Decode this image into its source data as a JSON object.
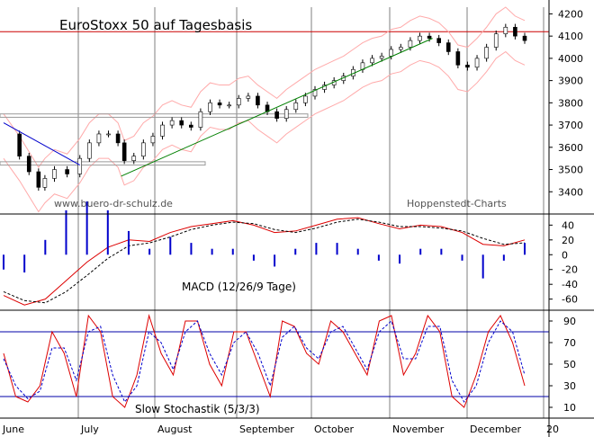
{
  "chart_data": [
    {
      "type": "candlestick",
      "title": "EuroStoxx 50 auf Tagesbasis",
      "watermark_left": "www.buero-dr-schulz.de",
      "watermark_right": "Hoppenstedt-Charts",
      "ylim": [
        3300,
        4230
      ],
      "yticks": [
        3400,
        3500,
        3600,
        3700,
        3800,
        3900,
        4000,
        4100,
        4200
      ],
      "horizontal_line": 4120,
      "months": [
        "June",
        "July",
        "August",
        "September",
        "October",
        "November",
        "December",
        "20"
      ],
      "close_path": [
        [
          0,
          3660
        ],
        [
          5,
          3560
        ],
        [
          8,
          3490
        ],
        [
          11,
          3420
        ],
        [
          13,
          3460
        ],
        [
          16,
          3500
        ],
        [
          20,
          3480
        ],
        [
          24,
          3550
        ],
        [
          27,
          3620
        ],
        [
          30,
          3660
        ],
        [
          33,
          3660
        ],
        [
          36,
          3620
        ],
        [
          38,
          3540
        ],
        [
          41,
          3560
        ],
        [
          44,
          3620
        ],
        [
          47,
          3650
        ],
        [
          50,
          3700
        ],
        [
          53,
          3720
        ],
        [
          56,
          3700
        ],
        [
          59,
          3690
        ],
        [
          62,
          3760
        ],
        [
          65,
          3800
        ],
        [
          68,
          3790
        ],
        [
          71,
          3790
        ],
        [
          74,
          3820
        ],
        [
          77,
          3830
        ],
        [
          80,
          3790
        ],
        [
          83,
          3760
        ],
        [
          86,
          3730
        ],
        [
          89,
          3770
        ],
        [
          92,
          3800
        ],
        [
          95,
          3830
        ],
        [
          98,
          3860
        ],
        [
          101,
          3880
        ],
        [
          104,
          3900
        ],
        [
          107,
          3920
        ],
        [
          110,
          3950
        ],
        [
          113,
          3980
        ],
        [
          116,
          4000
        ],
        [
          119,
          4010
        ],
        [
          122,
          4040
        ],
        [
          125,
          4050
        ],
        [
          128,
          4080
        ],
        [
          131,
          4100
        ],
        [
          134,
          4090
        ],
        [
          137,
          4070
        ],
        [
          140,
          4030
        ],
        [
          143,
          3970
        ],
        [
          146,
          3960
        ],
        [
          149,
          4000
        ],
        [
          152,
          4050
        ],
        [
          155,
          4110
        ],
        [
          158,
          4140
        ],
        [
          161,
          4100
        ],
        [
          164,
          4080
        ]
      ],
      "trendlines": [
        {
          "name": "down",
          "from": [
            0,
            3710
          ],
          "to": [
            24,
            3520
          ],
          "color": "#0000cc"
        },
        {
          "name": "up",
          "from": [
            37,
            3470
          ],
          "to": [
            135,
            4090
          ],
          "color": "#008000"
        }
      ],
      "support_boxes": [
        [
          3520,
          3535
        ],
        [
          3735,
          3750
        ]
      ],
      "band_colors": {
        "upper": "#ffaaaa",
        "lower": "#ffaaaa"
      }
    },
    {
      "type": "line",
      "title": "MACD (12/26/9 Tage)",
      "ylim": [
        -75,
        55
      ],
      "yticks": [
        40,
        20,
        0,
        -20,
        -40,
        -60
      ],
      "yticklabels": [
        "40",
        "20",
        "0",
        "-20",
        "-40",
        "-60"
      ],
      "series": [
        {
          "role": "macd",
          "color": "#dd0000",
          "values": [
            -55,
            -68,
            -60,
            -35,
            -10,
            10,
            20,
            18,
            30,
            38,
            42,
            46,
            40,
            30,
            32,
            40,
            48,
            50,
            42,
            35,
            40,
            38,
            30,
            14,
            12,
            20
          ]
        },
        {
          "role": "signal",
          "color": "#000000",
          "values": [
            -50,
            -62,
            -65,
            -50,
            -28,
            -5,
            12,
            16,
            24,
            34,
            40,
            44,
            42,
            34,
            30,
            36,
            44,
            48,
            44,
            38,
            38,
            36,
            32,
            22,
            14,
            16
          ]
        }
      ]
    },
    {
      "type": "line",
      "title": "Slow Stochastik (5/3/3)",
      "ylim": [
        0,
        100
      ],
      "yticks": [
        90,
        70,
        50,
        30,
        10
      ],
      "hlines": [
        80,
        20
      ],
      "series": [
        {
          "role": "k",
          "color": "#dd0000",
          "values": [
            60,
            20,
            15,
            30,
            80,
            60,
            20,
            95,
            80,
            20,
            10,
            40,
            95,
            60,
            40,
            90,
            90,
            50,
            30,
            80,
            80,
            50,
            20,
            90,
            85,
            60,
            50,
            90,
            80,
            60,
            40,
            90,
            95,
            40,
            60,
            95,
            80,
            20,
            10,
            40,
            80,
            95,
            70,
            30
          ]
        },
        {
          "role": "d",
          "color": "#0000cc",
          "values": [
            55,
            30,
            18,
            25,
            65,
            65,
            35,
            80,
            85,
            40,
            15,
            30,
            80,
            70,
            45,
            80,
            90,
            60,
            40,
            70,
            80,
            60,
            30,
            75,
            85,
            65,
            55,
            80,
            85,
            65,
            45,
            80,
            90,
            55,
            55,
            85,
            85,
            35,
            15,
            30,
            70,
            90,
            80,
            40
          ]
        }
      ]
    }
  ]
}
